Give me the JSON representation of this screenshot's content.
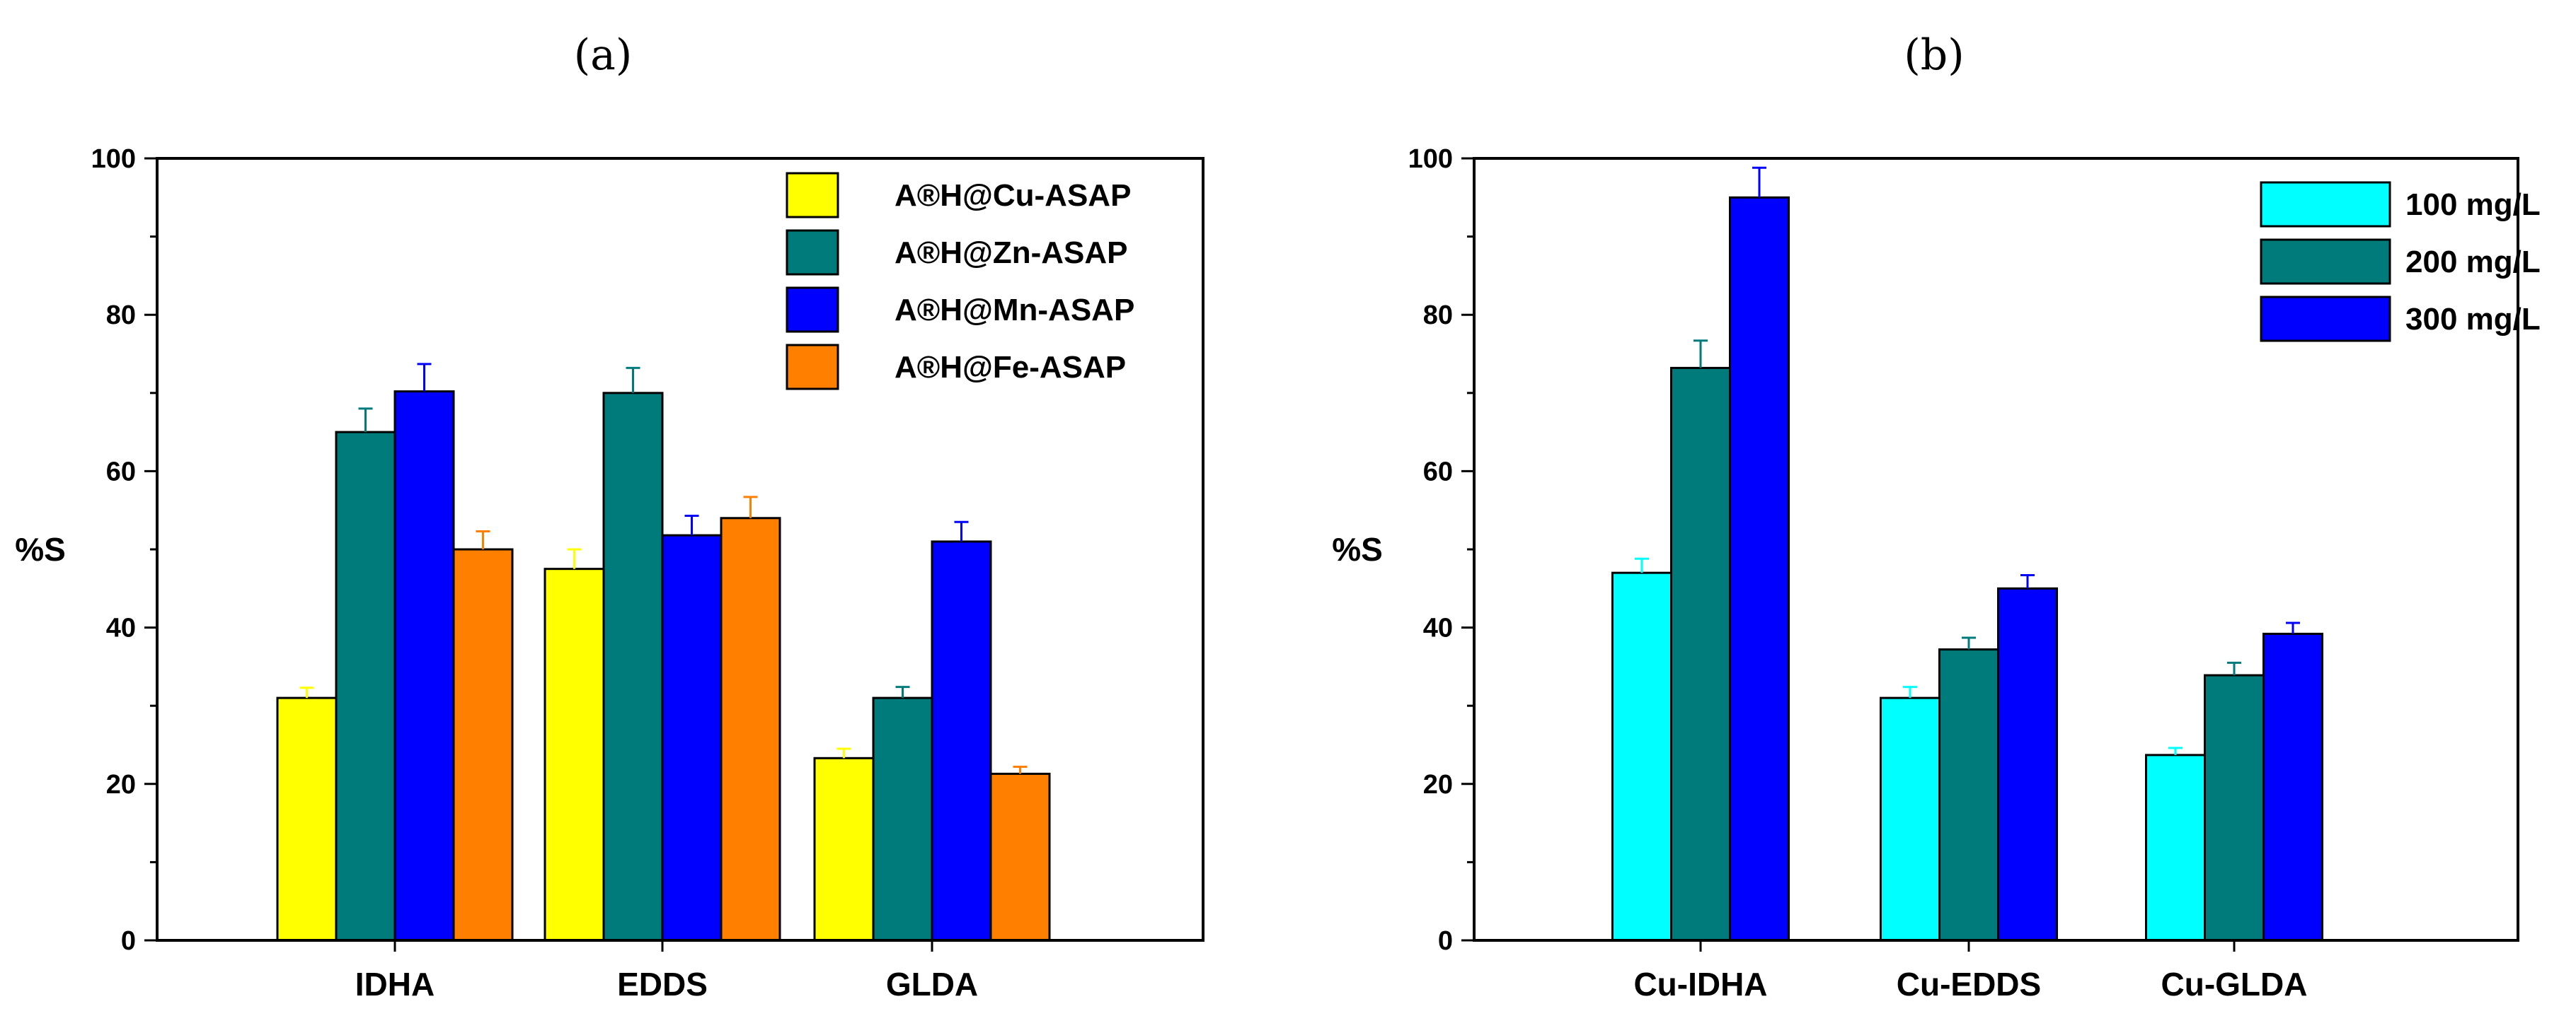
{
  "chart_data": [
    {
      "type": "bar",
      "panel": "(a)",
      "title": "",
      "xlabel": "",
      "ylabel": "%S",
      "ylim": [
        0,
        100
      ],
      "yticks": [
        "0",
        "20",
        "40",
        "60",
        "80",
        "100"
      ],
      "categories": [
        "IDHA",
        "EDDS",
        "GLDA"
      ],
      "legend_position": "top-right",
      "series": [
        {
          "name": "A®H@Cu-ASAP",
          "color": "#ffff00",
          "values": [
            31,
            47.5,
            23.3
          ],
          "errors": [
            1.3,
            2.5,
            1.2
          ]
        },
        {
          "name": "A®H@Zn-ASAP",
          "color": "#007b7b",
          "values": [
            65,
            70,
            31
          ],
          "errors": [
            3,
            3.2,
            1.4
          ]
        },
        {
          "name": "A®H@Mn-ASAP",
          "color": "#0000ff",
          "values": [
            70.2,
            51.8,
            51
          ],
          "errors": [
            3.5,
            2.5,
            2.5
          ]
        },
        {
          "name": "A®H@Fe-ASAP",
          "color": "#ff8000",
          "values": [
            50,
            54,
            21.3
          ],
          "errors": [
            2.3,
            2.7,
            0.9
          ]
        }
      ]
    },
    {
      "type": "bar",
      "panel": "(b)",
      "title": "",
      "xlabel": "",
      "ylabel": "%S",
      "ylim": [
        0,
        100
      ],
      "yticks": [
        "0",
        "20",
        "40",
        "60",
        "80",
        "100"
      ],
      "categories": [
        "Cu-IDHA",
        "Cu-EDDS",
        "Cu-GLDA"
      ],
      "legend_position": "top-right",
      "series": [
        {
          "name": "100 mg/L",
          "color": "#00ffff",
          "values": [
            47,
            31,
            23.7
          ],
          "errors": [
            1.8,
            1.4,
            0.9
          ]
        },
        {
          "name": "200 mg/L",
          "color": "#007b7b",
          "values": [
            73.2,
            37.2,
            33.9
          ],
          "errors": [
            3.5,
            1.5,
            1.6
          ]
        },
        {
          "name": "300 mg/L",
          "color": "#0000ff",
          "values": [
            95,
            45,
            39.2
          ],
          "errors": [
            3.8,
            1.7,
            1.4
          ]
        }
      ]
    }
  ]
}
